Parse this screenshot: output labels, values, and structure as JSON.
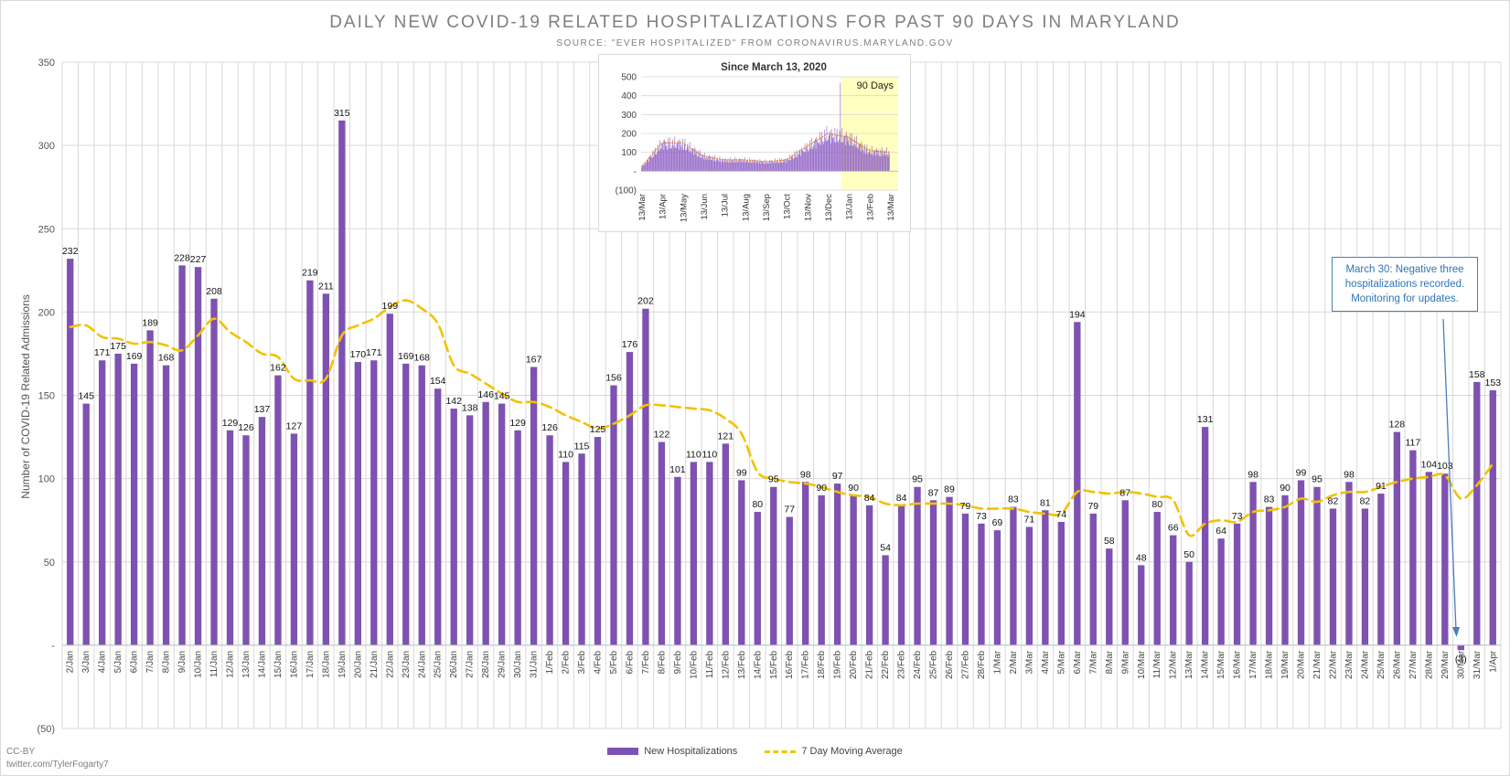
{
  "title": "DAILY NEW COVID-19 RELATED HOSPITALIZATIONS FOR PAST 90 DAYS IN MARYLAND",
  "subtitle": "SOURCE: \"EVER HOSPITALIZED\" FROM CORONAVIRUS.MARYLAND.GOV",
  "credit": {
    "license": "CC-BY",
    "handle": "twitter.com/TylerFogarty7"
  },
  "annotation": {
    "text": "March 30: Negative three hospitalizations recorded. Monitoring for updates."
  },
  "colors": {
    "bar": "#7e52b0",
    "moving_average": "#f2c200",
    "grid": "#d9d9d9",
    "annotation": "#2e75b6",
    "highlight": "#ffffc0"
  },
  "chart_data": [
    {
      "type": "bar",
      "title": "DAILY NEW COVID-19 RELATED HOSPITALIZATIONS FOR PAST 90 DAYS IN MARYLAND",
      "subtitle": "SOURCE: \"EVER HOSPITALIZED\" FROM CORONAVIRUS.MARYLAND.GOV",
      "xlabel": "",
      "ylabel": "Number of COVID-19 Related Admissions",
      "ylim": [
        -50,
        350
      ],
      "yticks": [
        -50,
        0,
        50,
        100,
        150,
        200,
        250,
        300,
        350
      ],
      "ytick_labels": [
        "(50)",
        "-",
        "50",
        "100",
        "150",
        "200",
        "250",
        "300",
        "350"
      ],
      "grid": true,
      "legend_position": "bottom",
      "categories": [
        "2/Jan",
        "3/Jan",
        "4/Jan",
        "5/Jan",
        "6/Jan",
        "7/Jan",
        "8/Jan",
        "9/Jan",
        "10/Jan",
        "11/Jan",
        "12/Jan",
        "13/Jan",
        "14/Jan",
        "15/Jan",
        "16/Jan",
        "17/Jan",
        "18/Jan",
        "19/Jan",
        "20/Jan",
        "21/Jan",
        "22/Jan",
        "23/Jan",
        "24/Jan",
        "25/Jan",
        "26/Jan",
        "27/Jan",
        "28/Jan",
        "29/Jan",
        "30/Jan",
        "31/Jan",
        "1/Feb",
        "2/Feb",
        "3/Feb",
        "4/Feb",
        "5/Feb",
        "6/Feb",
        "7/Feb",
        "8/Feb",
        "9/Feb",
        "10/Feb",
        "11/Feb",
        "12/Feb",
        "13/Feb",
        "14/Feb",
        "15/Feb",
        "16/Feb",
        "17/Feb",
        "18/Feb",
        "19/Feb",
        "20/Feb",
        "21/Feb",
        "22/Feb",
        "23/Feb",
        "24/Feb",
        "25/Feb",
        "26/Feb",
        "27/Feb",
        "28/Feb",
        "1/Mar",
        "2/Mar",
        "3/Mar",
        "4/Mar",
        "5/Mar",
        "6/Mar",
        "7/Mar",
        "8/Mar",
        "9/Mar",
        "10/Mar",
        "11/Mar",
        "12/Mar",
        "13/Mar",
        "14/Mar",
        "15/Mar",
        "16/Mar",
        "17/Mar",
        "18/Mar",
        "19/Mar",
        "20/Mar",
        "21/Mar",
        "22/Mar",
        "23/Mar",
        "24/Mar",
        "25/Mar",
        "26/Mar",
        "27/Mar",
        "28/Mar",
        "29/Mar",
        "30/Mar",
        "31/Mar",
        "1/Apr"
      ],
      "series": [
        {
          "name": "New Hospitalizations",
          "type": "bar",
          "values": [
            232,
            145,
            171,
            175,
            169,
            189,
            168,
            228,
            227,
            208,
            129,
            126,
            137,
            162,
            127,
            219,
            211,
            315,
            170,
            171,
            199,
            169,
            168,
            154,
            142,
            138,
            146,
            145,
            129,
            167,
            126,
            110,
            115,
            125,
            156,
            176,
            202,
            122,
            101,
            110,
            110,
            121,
            99,
            80,
            95,
            77,
            98,
            90,
            97,
            90,
            84,
            54,
            84,
            95,
            87,
            89,
            79,
            73,
            69,
            83,
            71,
            81,
            74,
            194,
            79,
            58,
            87,
            48,
            80,
            66,
            50,
            131,
            64,
            73,
            98,
            83,
            90,
            99,
            95,
            82,
            98,
            82,
            91,
            128,
            117,
            104,
            103,
            -3,
            158,
            153
          ],
          "data_labels": [
            "232",
            "145",
            "171",
            "175",
            "169",
            "189",
            "168",
            "228",
            "227",
            "208",
            "129",
            "126",
            "137",
            "162",
            "127",
            "219",
            "211",
            "315",
            "170",
            "171",
            "199",
            "169",
            "168",
            "154",
            "142",
            "138",
            "146",
            "145",
            "129",
            "167",
            "126",
            "110",
            "115",
            "125",
            "156",
            "176",
            "202",
            "122",
            "101",
            "110",
            "110",
            "121",
            "99",
            "80",
            "95",
            "77",
            "98",
            "90",
            "97",
            "90",
            "84",
            "54",
            "84",
            "95",
            "87",
            "89",
            "79",
            "73",
            "69",
            "83",
            "71",
            "81",
            "74",
            "194",
            "79",
            "58",
            "87",
            "48",
            "80",
            "66",
            "50",
            "131",
            "64",
            "73",
            "98",
            "83",
            "90",
            "99",
            "95",
            "82",
            "98",
            "82",
            "91",
            "128",
            "117",
            "104",
            "103",
            "(3)",
            "158",
            "153"
          ]
        },
        {
          "name": "7 Day Moving Average",
          "type": "line",
          "style": "dashed",
          "values": [
            191,
            192,
            185,
            184,
            181,
            182,
            180,
            177,
            186,
            196,
            188,
            182,
            175,
            173,
            160,
            159,
            160,
            186,
            192,
            196,
            203,
            207,
            202,
            193,
            168,
            163,
            157,
            151,
            146,
            146,
            143,
            138,
            134,
            130,
            133,
            138,
            144,
            144,
            143,
            142,
            141,
            136,
            127,
            104,
            100,
            98,
            97,
            95,
            92,
            90,
            89,
            85,
            84,
            85,
            85,
            85,
            84,
            82,
            82,
            82,
            80,
            79,
            79,
            92,
            92,
            91,
            92,
            91,
            89,
            87,
            66,
            73,
            75,
            74,
            80,
            81,
            83,
            88,
            86,
            90,
            92,
            92,
            95,
            98,
            100,
            101,
            102,
            88,
            96,
            109
          ]
        }
      ]
    },
    {
      "type": "bar",
      "title": "Since March 13, 2020",
      "highlight_label": "90 Days",
      "ylim": [
        -100,
        500
      ],
      "yticks": [
        -100,
        0,
        100,
        200,
        300,
        400,
        500
      ],
      "ytick_labels": [
        "(100)",
        "-",
        "100",
        "200",
        "300",
        "400",
        "500"
      ],
      "x_tick_labels": [
        "13/Mar",
        "13/Apr",
        "13/May",
        "13/Jun",
        "13/Jul",
        "13/Aug",
        "13/Sep",
        "13/Oct",
        "13/Nov",
        "13/Dec",
        "13/Jan",
        "13/Feb",
        "13/Mar"
      ],
      "monthly_values": [
        20,
        150,
        150,
        80,
        60,
        60,
        50,
        60,
        130,
        200,
        180,
        110,
        100
      ],
      "peak_value": 468,
      "highlight_range": [
        "2/Jan",
        "1/Apr"
      ]
    }
  ]
}
